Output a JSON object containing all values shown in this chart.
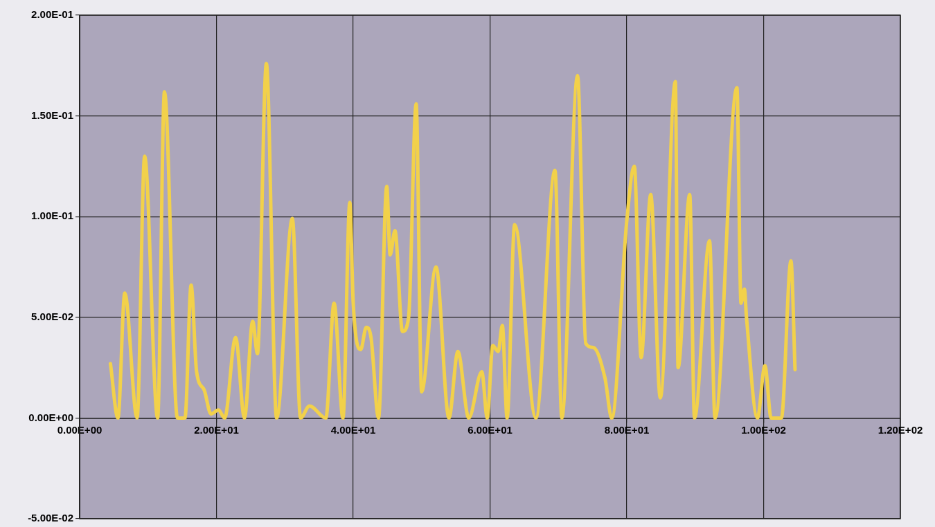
{
  "chart_data": {
    "type": "line",
    "x": [
      4.5,
      5.6,
      6.6,
      8.4,
      9.5,
      11.4,
      12.4,
      14.3,
      15.4,
      16.3,
      17.1,
      18.2,
      19.2,
      20.3,
      21.2,
      22.8,
      24.1,
      25.3,
      26.0,
      27.3,
      28.8,
      31.1,
      32.3,
      33.6,
      36.0,
      37.2,
      38.5,
      39.5,
      40.0,
      41.1,
      41.9,
      42.6,
      43.7,
      44.9,
      45.4,
      46.1,
      47.2,
      48.1,
      49.2,
      50.0,
      52.1,
      54.0,
      55.3,
      56.9,
      58.8,
      59.6,
      60.4,
      61.2,
      61.8,
      62.5,
      63.6,
      66.7,
      69.5,
      70.5,
      72.8,
      74.0,
      75.1,
      76.8,
      77.8,
      80.0,
      81.1,
      82.1,
      83.5,
      84.9,
      87.1,
      87.5,
      89.2,
      89.9,
      92.1,
      92.9,
      96.1,
      96.7,
      97.2,
      97.5,
      99.1,
      100.2,
      101.1,
      102.6,
      104.0,
      104.6
    ],
    "series": [
      {
        "color": "#f2d14a",
        "values": [
          0.027,
          0,
          0.062,
          0,
          0.13,
          0,
          0.162,
          0,
          0,
          0.066,
          0.023,
          0.014,
          0.002,
          0.004,
          0,
          0.04,
          0,
          0.048,
          0.032,
          0.176,
          0,
          0.099,
          0,
          0.006,
          0,
          0.057,
          0,
          0.107,
          0.057,
          0.034,
          0.045,
          0.04,
          0,
          0.115,
          0.081,
          0.093,
          0.043,
          0.05,
          0.156,
          0.013,
          0.075,
          0,
          0.033,
          0,
          0.023,
          0,
          0.036,
          0.033,
          0.046,
          0,
          0.096,
          0,
          0.123,
          0,
          0.17,
          0.037,
          0.035,
          0.02,
          0,
          0.098,
          0.125,
          0.03,
          0.111,
          0.01,
          0.167,
          0.025,
          0.111,
          0,
          0.088,
          0,
          0.164,
          0.057,
          0.064,
          0.05,
          0,
          0.026,
          0,
          0,
          0.078,
          0.024
        ]
      }
    ],
    "xlim": [
      0,
      120
    ],
    "xticks": [
      {
        "value": 0,
        "label": "0.00E+00"
      },
      {
        "value": 20,
        "label": "2.00E+01"
      },
      {
        "value": 40,
        "label": "4.00E+01"
      },
      {
        "value": 60,
        "label": "6.00E+01"
      },
      {
        "value": 80,
        "label": "8.00E+01"
      },
      {
        "value": 100,
        "label": "1.00E+02"
      },
      {
        "value": 120,
        "label": "1.20E+02"
      }
    ],
    "ylim": [
      -0.05,
      0.2
    ],
    "yticks": [
      {
        "value": -0.05,
        "label": "-5.00E-02"
      },
      {
        "value": 0,
        "label": "0.00E+00"
      },
      {
        "value": 0.05,
        "label": "5.00E-02"
      },
      {
        "value": 0.1,
        "label": "1.00E-01"
      },
      {
        "value": 0.15,
        "label": "1.50E-01"
      },
      {
        "value": 0.2,
        "label": "2.00E-01"
      }
    ],
    "grid": true,
    "legend": false,
    "marker": "none",
    "line_style": "solid"
  }
}
